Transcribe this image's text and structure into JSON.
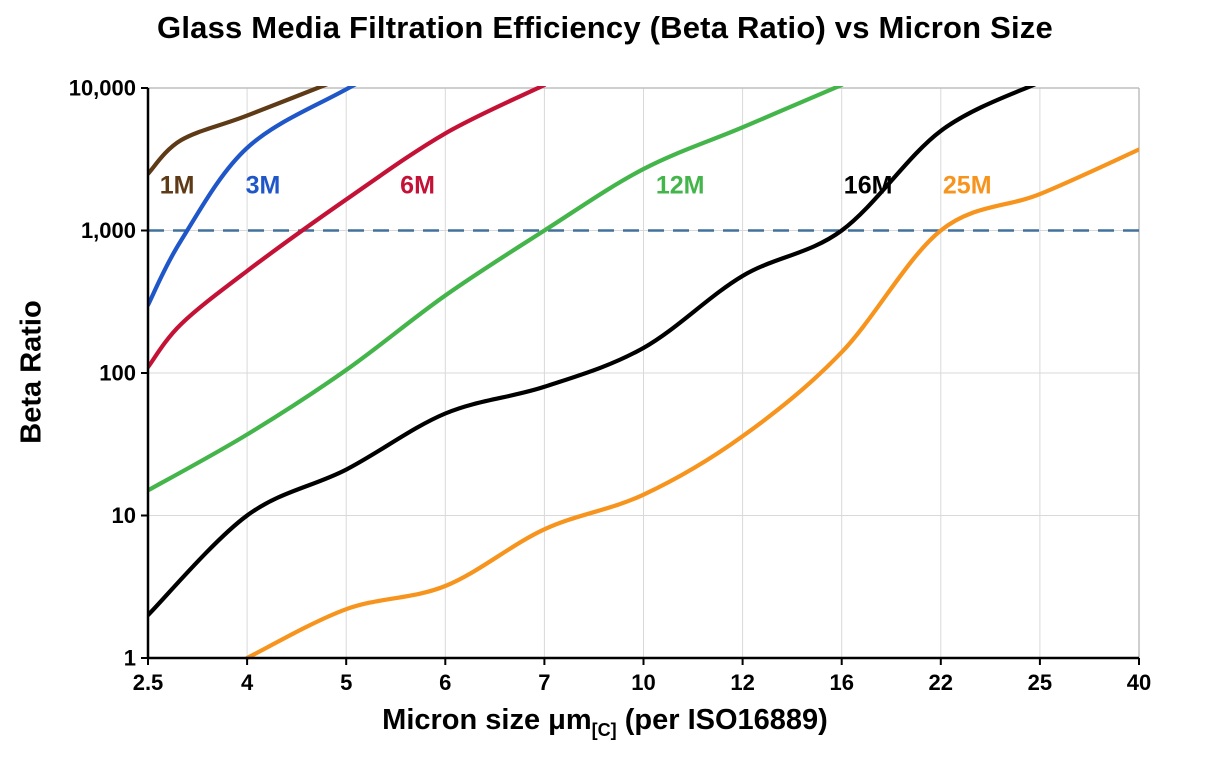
{
  "title": "Glass Media Filtration Efficiency (Beta Ratio) vs Micron Size",
  "axes": {
    "y_title": "Beta Ratio",
    "x_title_main": "Micron size μm",
    "x_title_sub": "[C]",
    "x_title_rest": " (per ISO16889)"
  },
  "chart_data": {
    "type": "line",
    "title": "Glass Media Filtration Efficiency (Beta Ratio) vs Micron Size",
    "xlabel": "Micron size μm[C] (per ISO16889)",
    "ylabel": "Beta Ratio",
    "x_scale": "categorical",
    "y_scale": "log",
    "ylim": [
      1,
      10000
    ],
    "grid": true,
    "legend_position": "inline-labels",
    "categories": [
      2.5,
      4,
      5,
      6,
      7,
      10,
      12,
      16,
      22,
      25,
      40
    ],
    "x_tick_labels": [
      "2.5",
      "4",
      "5",
      "6",
      "7",
      "10",
      "12",
      "16",
      "22",
      "25",
      "40"
    ],
    "y_ticks": [
      1,
      10,
      100,
      1000,
      10000
    ],
    "y_tick_labels": [
      "1",
      "10",
      "100",
      "1,000",
      "10,000"
    ],
    "reference_line": {
      "y": 1000,
      "color": "#41719C",
      "style": "dashed"
    },
    "colors": {
      "grid": "#D9D9D9",
      "outer_border": "#BFBFBF",
      "axis": "#000000",
      "tick_label": "#000000"
    },
    "series": [
      {
        "name": "1M",
        "color": "#5E3A16",
        "label": {
          "text": "1M",
          "x": 2.94,
          "y": 2100
        },
        "points": [
          [
            2.5,
            2500
          ],
          [
            3,
            4300
          ],
          [
            4,
            6400
          ],
          [
            5,
            12000
          ]
        ]
      },
      {
        "name": "3M",
        "color": "#1F56C8",
        "label": {
          "text": "3M",
          "x": 4.16,
          "y": 2100
        },
        "points": [
          [
            2.5,
            300
          ],
          [
            3,
            850
          ],
          [
            4,
            3800
          ],
          [
            5,
            9800
          ],
          [
            6,
            22000
          ]
        ]
      },
      {
        "name": "6M",
        "color": "#C41237",
        "label": {
          "text": "6M",
          "x": 5.72,
          "y": 2100
        },
        "points": [
          [
            2.5,
            110
          ],
          [
            3,
            220
          ],
          [
            4,
            520
          ],
          [
            5,
            1650
          ],
          [
            6,
            4800
          ],
          [
            7,
            10500
          ]
        ]
      },
      {
        "name": "12M",
        "color": "#44B54A",
        "label": {
          "text": "12M",
          "x": 10.74,
          "y": 2100
        },
        "points": [
          [
            2.5,
            15
          ],
          [
            4,
            37
          ],
          [
            5,
            105
          ],
          [
            6,
            350
          ],
          [
            7,
            1000
          ],
          [
            10,
            2700
          ],
          [
            12,
            5300
          ],
          [
            16,
            10500
          ]
        ]
      },
      {
        "name": "16M",
        "color": "#000000",
        "label": {
          "text": "16M",
          "x": 17.6,
          "y": 2100
        },
        "points": [
          [
            2.5,
            2
          ],
          [
            4,
            10
          ],
          [
            5,
            21
          ],
          [
            6,
            52
          ],
          [
            7,
            80
          ],
          [
            10,
            150
          ],
          [
            12,
            480
          ],
          [
            16,
            1000
          ],
          [
            22,
            5000
          ],
          [
            25,
            11000
          ]
        ]
      },
      {
        "name": "25M",
        "color": "#F7941E",
        "label": {
          "text": "25M",
          "x": 22.8,
          "y": 2100
        },
        "points": [
          [
            4,
            1
          ],
          [
            5,
            2.2
          ],
          [
            6,
            3.2
          ],
          [
            7,
            8
          ],
          [
            10,
            14
          ],
          [
            12,
            36
          ],
          [
            16,
            140
          ],
          [
            22,
            1000
          ],
          [
            25,
            1800
          ],
          [
            40,
            3700
          ]
        ]
      }
    ]
  }
}
